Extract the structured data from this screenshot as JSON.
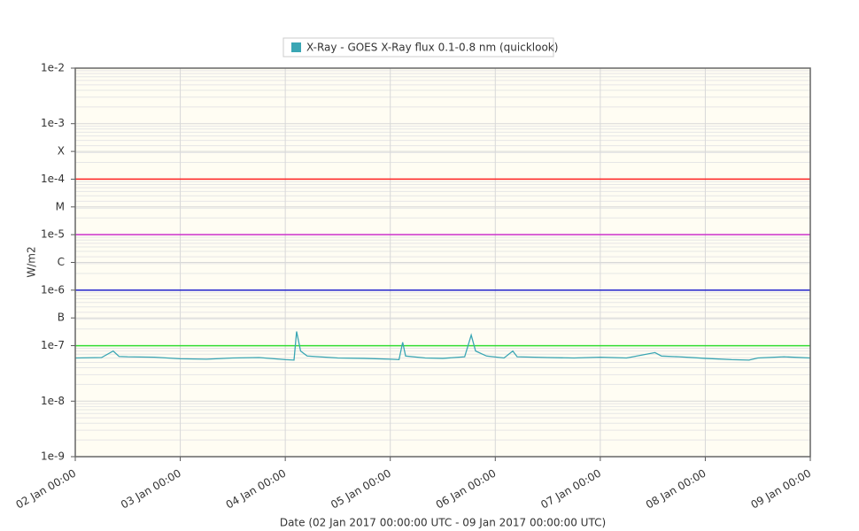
{
  "chart_data": {
    "type": "line",
    "y_label": "W/m2",
    "x_label": "Date (02 Jan 2017 00:00:00 UTC - 09 Jan 2017 00:00:00 UTC)",
    "log_y": true,
    "grid": true,
    "minor_grid": true,
    "legend": "top",
    "ylim": [
      1e-09,
      0.01
    ],
    "yticks": [
      {
        "value": 0.01,
        "label": "1e-2"
      },
      {
        "value": 0.001,
        "label": "1e-3"
      },
      {
        "value": 0.000316,
        "label": "X"
      },
      {
        "value": 0.0001,
        "label": "1e-4"
      },
      {
        "value": 3.16e-05,
        "label": "M"
      },
      {
        "value": 1e-05,
        "label": "1e-5"
      },
      {
        "value": 3.16e-06,
        "label": "C"
      },
      {
        "value": 1e-06,
        "label": "1e-6"
      },
      {
        "value": 3.16e-07,
        "label": "B"
      },
      {
        "value": 1e-07,
        "label": "1e-7"
      },
      {
        "value": 1e-08,
        "label": "1e-8"
      },
      {
        "value": 1e-09,
        "label": "1e-9"
      }
    ],
    "xlim": [
      "2017-01-02T00:00:00Z",
      "2017-01-09T00:00:00Z"
    ],
    "xticks": [
      {
        "value": "2017-01-02T00:00:00Z",
        "label": "02 Jan 00:00"
      },
      {
        "value": "2017-01-03T00:00:00Z",
        "label": "03 Jan 00:00"
      },
      {
        "value": "2017-01-04T00:00:00Z",
        "label": "04 Jan 00:00"
      },
      {
        "value": "2017-01-05T00:00:00Z",
        "label": "05 Jan 00:00"
      },
      {
        "value": "2017-01-06T00:00:00Z",
        "label": "06 Jan 00:00"
      },
      {
        "value": "2017-01-07T00:00:00Z",
        "label": "07 Jan 00:00"
      },
      {
        "value": "2017-01-08T00:00:00Z",
        "label": "08 Jan 00:00"
      },
      {
        "value": "2017-01-09T00:00:00Z",
        "label": "09 Jan 00:00"
      }
    ],
    "threshold_lines": [
      {
        "value": 0.0001,
        "color": "#ff2222"
      },
      {
        "value": 1e-05,
        "color": "#cc33cc"
      },
      {
        "value": 1e-06,
        "color": "#2222cc"
      },
      {
        "value": 1e-07,
        "color": "#33dd33"
      }
    ],
    "x": [
      "2017-01-02T00:00:00Z",
      "2017-01-02T06:00:00Z",
      "2017-01-02T08:40:00Z",
      "2017-01-02T10:00:00Z",
      "2017-01-02T12:00:00Z",
      "2017-01-02T18:00:00Z",
      "2017-01-03T00:00:00Z",
      "2017-01-03T06:00:00Z",
      "2017-01-03T12:00:00Z",
      "2017-01-03T18:00:00Z",
      "2017-01-04T00:00:00Z",
      "2017-01-04T02:00:00Z",
      "2017-01-04T02:35:00Z",
      "2017-01-04T03:30:00Z",
      "2017-01-04T05:00:00Z",
      "2017-01-04T12:00:00Z",
      "2017-01-04T18:00:00Z",
      "2017-01-05T00:00:00Z",
      "2017-01-05T02:00:00Z",
      "2017-01-05T02:50:00Z",
      "2017-01-05T03:30:00Z",
      "2017-01-05T08:00:00Z",
      "2017-01-05T12:00:00Z",
      "2017-01-05T17:00:00Z",
      "2017-01-05T18:30:00Z",
      "2017-01-05T19:30:00Z",
      "2017-01-05T22:00:00Z",
      "2017-01-06T02:00:00Z",
      "2017-01-06T04:00:00Z",
      "2017-01-06T05:00:00Z",
      "2017-01-06T12:00:00Z",
      "2017-01-06T18:00:00Z",
      "2017-01-07T00:00:00Z",
      "2017-01-07T06:00:00Z",
      "2017-01-07T12:30:00Z",
      "2017-01-07T14:00:00Z",
      "2017-01-07T18:00:00Z",
      "2017-01-08T00:00:00Z",
      "2017-01-08T06:00:00Z",
      "2017-01-08T10:00:00Z",
      "2017-01-08T12:00:00Z",
      "2017-01-08T18:00:00Z",
      "2017-01-09T00:00:00Z"
    ],
    "series": [
      {
        "name": "X-Ray - GOES X-Ray flux 0.1-0.8 nm (quicklook)",
        "color": "#3aa6b4",
        "values": [
          6e-08,
          6.1e-08,
          8e-08,
          6.4e-08,
          6.3e-08,
          6.2e-08,
          5.8e-08,
          5.7e-08,
          6e-08,
          6.1e-08,
          5.6e-08,
          5.5e-08,
          1.8e-07,
          8e-08,
          6.5e-08,
          6e-08,
          5.9e-08,
          5.7e-08,
          5.6e-08,
          1.15e-07,
          6.5e-08,
          6e-08,
          5.9e-08,
          6.3e-08,
          1.55e-07,
          8e-08,
          6.5e-08,
          6e-08,
          8e-08,
          6.3e-08,
          6.1e-08,
          6e-08,
          6.2e-08,
          6e-08,
          7.5e-08,
          6.5e-08,
          6.3e-08,
          5.9e-08,
          5.6e-08,
          5.5e-08,
          6e-08,
          6.3e-08,
          6e-08
        ]
      }
    ]
  }
}
